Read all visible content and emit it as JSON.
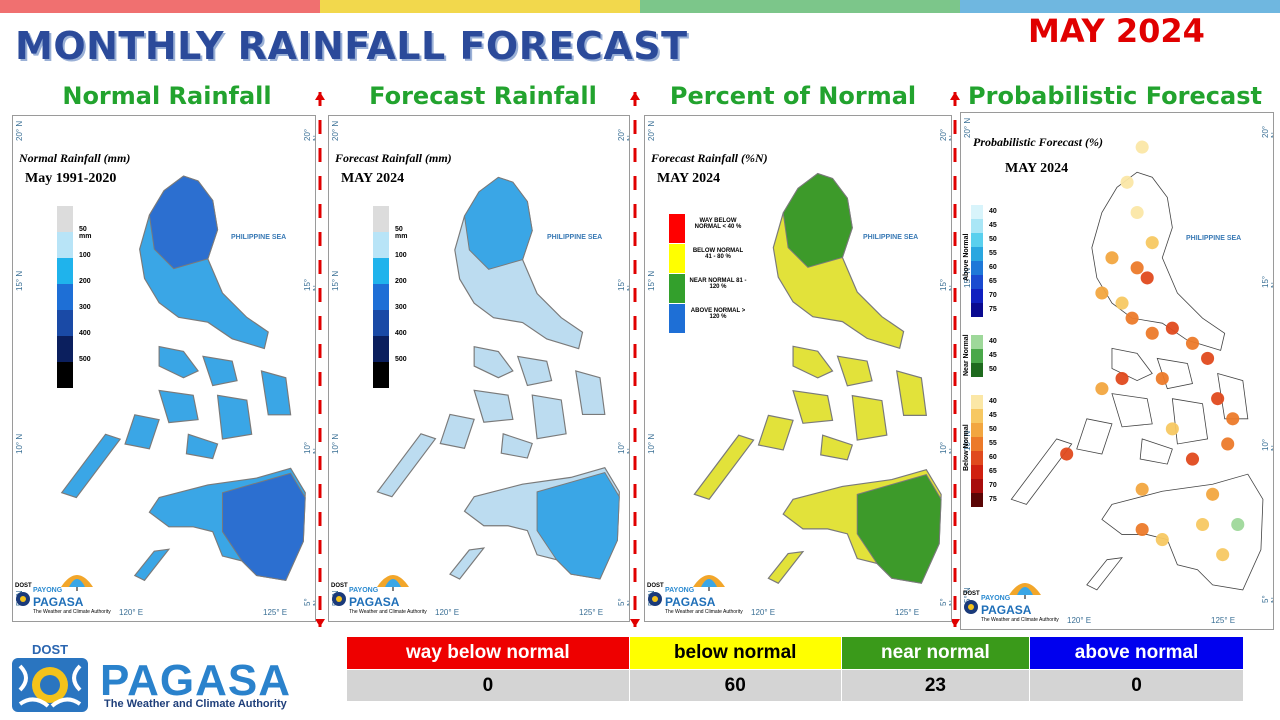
{
  "header": {
    "title": "MONTHLY RAINFALL FORECAST",
    "month": "MAY 2024",
    "bar_colors": [
      "#f07070",
      "#f2d84c",
      "#7cc68a",
      "#6fb7e0"
    ]
  },
  "panels": [
    {
      "heading": "Normal Rainfall",
      "map_title": "Normal Rainfall (mm)",
      "map_subtitle": "May 1991-2020",
      "legend": [
        {
          "label": "50 mm",
          "color": "#dcdcdc"
        },
        {
          "label": "100",
          "color": "#b8e4f7"
        },
        {
          "label": "200",
          "color": "#1fb3ec"
        },
        {
          "label": "300",
          "color": "#1e6fd6"
        },
        {
          "label": "400",
          "color": "#1a4aa6"
        },
        {
          "label": "500",
          "color": "#0b1f5e"
        },
        {
          "label": "",
          "color": "#000000"
        }
      ],
      "fill_main": "#3aa6e6",
      "fill_north": "#2c6fd0",
      "fill_south": "#2c6fd0"
    },
    {
      "heading": "Forecast Rainfall",
      "map_title": "Forecast Rainfall (mm)",
      "map_subtitle": "MAY 2024",
      "legend": [
        {
          "label": "50 mm",
          "color": "#dcdcdc"
        },
        {
          "label": "100",
          "color": "#b8e4f7"
        },
        {
          "label": "200",
          "color": "#1fb3ec"
        },
        {
          "label": "300",
          "color": "#1e6fd6"
        },
        {
          "label": "400",
          "color": "#1a4aa6"
        },
        {
          "label": "500",
          "color": "#0b1f5e"
        },
        {
          "label": "",
          "color": "#000000"
        }
      ],
      "fill_main": "#bcdcf0",
      "fill_north": "#3aa6e6",
      "fill_south": "#3aa6e6"
    },
    {
      "heading": "Percent of Normal",
      "map_title": "Forecast Rainfall (%N)",
      "map_subtitle": "MAY 2024",
      "legend": [
        {
          "label": "WAY BELOW NORMAL < 40 %",
          "color": "#ff0000"
        },
        {
          "label": "BELOW NORMAL 41 - 80 %",
          "color": "#ffff00"
        },
        {
          "label": "NEAR NORMAL 81 - 120 %",
          "color": "#33a02c"
        },
        {
          "label": "ABOVE NORMAL > 120 %",
          "color": "#1e6fd6"
        }
      ],
      "fill_main": "#e2e23a",
      "fill_north": "#3d9a2a",
      "fill_south": "#3d9a2a"
    },
    {
      "heading": "Probabilistic Forecast",
      "map_title": "Probabilistic Forecast (%)",
      "map_subtitle": "MAY 2024",
      "legend_groups": [
        {
          "name": "Above Normal",
          "items": [
            {
              "label": "40",
              "color": "#d8f4fb"
            },
            {
              "label": "45",
              "color": "#a9e6f6"
            },
            {
              "label": "50",
              "color": "#5ad0ee"
            },
            {
              "label": "55",
              "color": "#2aa7e0"
            },
            {
              "label": "60",
              "color": "#1e78d8"
            },
            {
              "label": "65",
              "color": "#1a4ad0"
            },
            {
              "label": "70",
              "color": "#1020c0"
            },
            {
              "label": "75",
              "color": "#0a0a90"
            }
          ]
        },
        {
          "name": "Near Normal",
          "items": [
            {
              "label": "40",
              "color": "#9ed89a"
            },
            {
              "label": "45",
              "color": "#4aa84a"
            },
            {
              "label": "50",
              "color": "#1e6a1e"
            }
          ]
        },
        {
          "name": "Below Normal",
          "items": [
            {
              "label": "40",
              "color": "#fbe7a6"
            },
            {
              "label": "45",
              "color": "#f7c862"
            },
            {
              "label": "50",
              "color": "#f2a640"
            },
            {
              "label": "55",
              "color": "#ec7a2a"
            },
            {
              "label": "60",
              "color": "#e04a1e"
            },
            {
              "label": "65",
              "color": "#d02010"
            },
            {
              "label": "70",
              "color": "#a80c0c"
            },
            {
              "label": "75",
              "color": "#5a0505"
            }
          ]
        }
      ]
    }
  ],
  "axis": {
    "lat": [
      "20° N",
      "15° N",
      "10° N",
      "5° N"
    ],
    "lon": [
      "120° E",
      "125° E"
    ],
    "sea": "PHILIPPINE SEA"
  },
  "panel_logo": {
    "dost": "DOST",
    "payong": "PAYONG",
    "pagasa": "PAGASA",
    "tagline": "The Weather and Climate Authority"
  },
  "summary": {
    "categories": [
      {
        "label": "way below normal",
        "value": "0",
        "bg": "#ee0000",
        "fg": "#ffffff"
      },
      {
        "label": "below normal",
        "value": "60",
        "bg": "#ffff00",
        "fg": "#000000"
      },
      {
        "label": "near normal",
        "value": "23",
        "bg": "#3a9a1a",
        "fg": "#ffffff"
      },
      {
        "label": "above normal",
        "value": "0",
        "bg": "#0000ee",
        "fg": "#ffffff"
      }
    ]
  },
  "bottom_logo": {
    "dost": "DOST",
    "pagasa": "PAGASA",
    "tagline": "The Weather and Climate Authority"
  }
}
